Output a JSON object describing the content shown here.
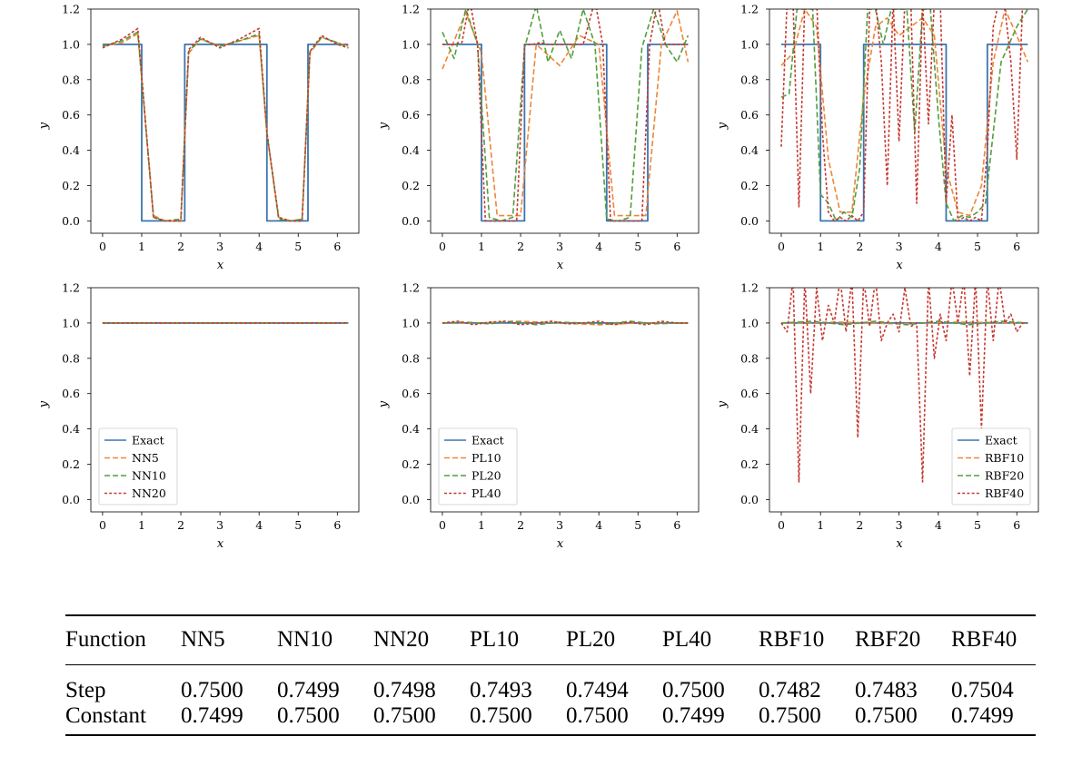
{
  "colors": {
    "exact": "#3b75af",
    "s1": "#ef8636",
    "s2": "#529e3e",
    "s3": "#c53a32",
    "axis": "#000000"
  },
  "chart_data": [
    {
      "type": "line",
      "function": "step",
      "xlabel": "x",
      "ylabel": "y",
      "xlim": [
        -0.3,
        6.55
      ],
      "ylim": [
        -0.07,
        1.2
      ],
      "xticks": [
        0,
        1,
        2,
        3,
        4,
        5,
        6
      ],
      "yticks": [
        0.0,
        0.2,
        0.4,
        0.6,
        0.8,
        1.0,
        1.2
      ],
      "legend": null,
      "series": [
        {
          "name": "Exact",
          "style": "solid",
          "color_key": "exact",
          "x": [
            0,
            1,
            1,
            2.1,
            2.1,
            4.2,
            4.2,
            5.25,
            5.25,
            6.28
          ],
          "y": [
            1,
            1,
            0,
            0,
            1,
            1,
            0,
            0,
            1,
            1
          ]
        },
        {
          "name": "NN5",
          "style": "dashed",
          "color_key": "s1",
          "x": [
            0,
            0.5,
            0.9,
            1.3,
            1.6,
            2.0,
            2.2,
            2.5,
            3.0,
            3.5,
            4.0,
            4.2,
            4.5,
            4.8,
            5.1,
            5.3,
            5.6,
            6.0,
            6.28
          ],
          "y": [
            0.99,
            1.01,
            1.06,
            0.03,
            0.0,
            0.0,
            0.95,
            1.03,
            0.99,
            1.02,
            1.05,
            0.5,
            0.02,
            0.0,
            0.01,
            0.95,
            1.04,
            1.01,
            0.99
          ]
        },
        {
          "name": "NN10",
          "style": "dashed",
          "color_key": "s2",
          "x": [
            0,
            0.5,
            0.9,
            1.3,
            1.6,
            2.0,
            2.2,
            2.5,
            3.0,
            3.5,
            4.0,
            4.2,
            4.5,
            4.8,
            5.1,
            5.3,
            5.6,
            6.0,
            6.28
          ],
          "y": [
            0.99,
            1.02,
            1.07,
            0.02,
            0.0,
            0.01,
            0.96,
            1.03,
            0.99,
            1.02,
            1.06,
            0.5,
            0.01,
            0.0,
            0.01,
            0.96,
            1.04,
            1.01,
            0.98
          ]
        },
        {
          "name": "NN20",
          "style": "dotted",
          "color_key": "s3",
          "x": [
            0,
            0.5,
            0.9,
            1.3,
            1.6,
            2.0,
            2.2,
            2.5,
            3.0,
            3.5,
            4.0,
            4.2,
            4.5,
            4.8,
            5.1,
            5.3,
            5.6,
            6.0,
            6.28
          ],
          "y": [
            0.98,
            1.03,
            1.09,
            0.02,
            0.0,
            0.0,
            0.97,
            1.04,
            0.98,
            1.03,
            1.09,
            0.5,
            0.02,
            0.0,
            0.0,
            0.96,
            1.05,
            1.0,
            0.98
          ]
        }
      ]
    },
    {
      "type": "line",
      "function": "step",
      "xlabel": "x",
      "ylabel": "y",
      "xlim": [
        -0.3,
        6.55
      ],
      "ylim": [
        -0.07,
        1.2
      ],
      "xticks": [
        0,
        1,
        2,
        3,
        4,
        5,
        6
      ],
      "yticks": [
        0.0,
        0.2,
        0.4,
        0.6,
        0.8,
        1.0,
        1.2
      ],
      "legend": null,
      "series": [
        {
          "name": "Exact",
          "style": "solid",
          "color_key": "exact",
          "x": [
            0,
            1,
            1,
            2.1,
            2.1,
            4.2,
            4.2,
            5.25,
            5.25,
            6.28
          ],
          "y": [
            1,
            1,
            0,
            0,
            1,
            1,
            0,
            0,
            1,
            1
          ]
        },
        {
          "name": "PL10",
          "style": "dashed",
          "color_key": "s1",
          "x": [
            0,
            0.6,
            1.0,
            1.4,
            2.0,
            2.4,
            3.0,
            3.5,
            4.0,
            4.4,
            5.2,
            5.6,
            6.0,
            6.28
          ],
          "y": [
            0.86,
            1.18,
            0.95,
            0.03,
            0.03,
            1.0,
            0.88,
            1.05,
            1.0,
            0.03,
            0.03,
            1.0,
            1.19,
            0.9
          ]
        },
        {
          "name": "PL20",
          "style": "dashed",
          "color_key": "s2",
          "x": [
            0,
            0.3,
            0.6,
            0.9,
            1.2,
            1.5,
            1.8,
            2.1,
            2.4,
            2.7,
            3.0,
            3.3,
            3.6,
            3.9,
            4.2,
            4.5,
            4.8,
            5.1,
            5.4,
            5.7,
            6.0,
            6.28
          ],
          "y": [
            1.07,
            0.92,
            1.2,
            1.0,
            0.02,
            0.0,
            0.02,
            0.98,
            1.22,
            0.9,
            1.08,
            0.92,
            1.2,
            1.0,
            0.01,
            0.0,
            0.02,
            0.98,
            1.2,
            1.0,
            0.9,
            1.05
          ]
        },
        {
          "name": "PL40",
          "style": "dotted",
          "color_key": "s3",
          "x": [
            0,
            0.3,
            0.5,
            0.7,
            0.9,
            1.1,
            1.3,
            1.6,
            1.9,
            2.1,
            2.3,
            2.5,
            2.7,
            3.0,
            3.3,
            3.6,
            3.9,
            4.1,
            4.3,
            4.6,
            4.9,
            5.1,
            5.3,
            5.5,
            5.7,
            6.0,
            6.28
          ],
          "y": [
            1.0,
            1.0,
            1.01,
            1.25,
            1.0,
            0.0,
            0.0,
            0.0,
            0.0,
            1.0,
            1.0,
            1.01,
            1.0,
            1.0,
            1.0,
            1.0,
            1.25,
            1.0,
            0.0,
            0.0,
            0.0,
            0.0,
            1.0,
            1.25,
            1.0,
            1.0,
            1.0
          ]
        }
      ]
    },
    {
      "type": "line",
      "function": "step",
      "xlabel": "x",
      "ylabel": "y",
      "xlim": [
        -0.3,
        6.55
      ],
      "ylim": [
        -0.07,
        1.2
      ],
      "xticks": [
        0,
        1,
        2,
        3,
        4,
        5,
        6
      ],
      "yticks": [
        0.0,
        0.2,
        0.4,
        0.6,
        0.8,
        1.0,
        1.2
      ],
      "legend": null,
      "series": [
        {
          "name": "Exact",
          "style": "solid",
          "color_key": "exact",
          "x": [
            0,
            1,
            1,
            2.1,
            2.1,
            4.2,
            4.2,
            5.25,
            5.25,
            6.28
          ],
          "y": [
            1,
            1,
            0,
            0,
            1,
            1,
            0,
            0,
            1,
            1
          ]
        },
        {
          "name": "RBF10",
          "style": "dashed",
          "color_key": "s1",
          "x": [
            0,
            0.3,
            0.6,
            0.9,
            1.2,
            1.5,
            1.8,
            2.1,
            2.4,
            2.7,
            3.0,
            3.3,
            3.6,
            3.9,
            4.2,
            4.5,
            4.8,
            5.1,
            5.4,
            5.7,
            6.0,
            6.28
          ],
          "y": [
            0.88,
            0.95,
            1.2,
            1.1,
            0.35,
            0.05,
            0.05,
            0.7,
            1.1,
            1.15,
            1.05,
            1.1,
            1.15,
            1.05,
            0.3,
            0.05,
            0.03,
            0.2,
            0.9,
            1.2,
            1.05,
            0.9
          ]
        },
        {
          "name": "RBF20",
          "style": "dashed",
          "color_key": "s2",
          "x": [
            0,
            0.2,
            0.4,
            0.6,
            0.8,
            1.0,
            1.2,
            1.4,
            1.6,
            1.8,
            2.0,
            2.2,
            2.4,
            2.6,
            2.8,
            3.0,
            3.2,
            3.4,
            3.6,
            3.8,
            4.0,
            4.2,
            4.4,
            4.6,
            4.8,
            5.0,
            5.2,
            5.4,
            5.6,
            5.8,
            6.0,
            6.28
          ],
          "y": [
            0.7,
            0.72,
            1.2,
            1.2,
            1.2,
            0.15,
            0.1,
            0.0,
            0.05,
            0.02,
            0.3,
            1.2,
            1.2,
            1.0,
            1.2,
            1.2,
            1.2,
            0.5,
            1.2,
            1.2,
            0.6,
            0.1,
            0.0,
            0.03,
            0.02,
            0.05,
            0.1,
            0.5,
            0.9,
            1.0,
            1.1,
            1.2
          ]
        },
        {
          "name": "RBF40",
          "style": "dotted",
          "color_key": "s3",
          "x": [
            0,
            0.15,
            0.3,
            0.45,
            0.6,
            0.75,
            0.9,
            1.05,
            1.2,
            1.35,
            1.5,
            1.65,
            1.8,
            1.95,
            2.1,
            2.25,
            2.4,
            2.55,
            2.7,
            2.85,
            3.0,
            3.15,
            3.3,
            3.45,
            3.6,
            3.75,
            3.9,
            4.05,
            4.2,
            4.35,
            4.5,
            4.65,
            4.8,
            4.95,
            5.1,
            5.25,
            5.4,
            5.55,
            5.7,
            5.85,
            6.0,
            6.15,
            6.28
          ],
          "y": [
            0.42,
            1.25,
            1.25,
            0.08,
            1.25,
            1.25,
            1.25,
            0.5,
            0.05,
            0.0,
            0.02,
            0.0,
            0.03,
            0.0,
            0.05,
            1.2,
            1.25,
            0.9,
            0.2,
            1.25,
            0.45,
            1.25,
            1.25,
            0.1,
            1.25,
            0.55,
            1.25,
            1.25,
            0.1,
            0.6,
            0.0,
            0.02,
            0.0,
            0.02,
            0.0,
            0.4,
            1.1,
            1.25,
            1.2,
            0.9,
            0.35,
            1.25,
            1.25
          ]
        }
      ]
    },
    {
      "type": "line",
      "function": "constant",
      "xlabel": "x",
      "ylabel": "y",
      "xlim": [
        -0.3,
        6.55
      ],
      "ylim": [
        -0.07,
        1.2
      ],
      "xticks": [
        0,
        1,
        2,
        3,
        4,
        5,
        6
      ],
      "yticks": [
        0.0,
        0.2,
        0.4,
        0.6,
        0.8,
        1.0,
        1.2
      ],
      "legend": "lower-left",
      "series": [
        {
          "name": "Exact",
          "style": "solid",
          "color_key": "exact",
          "x": [
            0,
            6.28
          ],
          "y": [
            1,
            1
          ]
        },
        {
          "name": "NN5",
          "style": "dashed",
          "color_key": "s1",
          "x": [
            0,
            6.28
          ],
          "y": [
            1,
            1
          ]
        },
        {
          "name": "NN10",
          "style": "dashed",
          "color_key": "s2",
          "x": [
            0,
            6.28
          ],
          "y": [
            1,
            1
          ]
        },
        {
          "name": "NN20",
          "style": "dotted",
          "color_key": "s3",
          "x": [
            0,
            6.28
          ],
          "y": [
            1,
            1
          ]
        }
      ]
    },
    {
      "type": "line",
      "function": "constant",
      "xlabel": "x",
      "ylabel": "y",
      "xlim": [
        -0.3,
        6.55
      ],
      "ylim": [
        -0.07,
        1.2
      ],
      "xticks": [
        0,
        1,
        2,
        3,
        4,
        5,
        6
      ],
      "yticks": [
        0.0,
        0.2,
        0.4,
        0.6,
        0.8,
        1.0,
        1.2
      ],
      "legend": "lower-left",
      "series": [
        {
          "name": "Exact",
          "style": "solid",
          "color_key": "exact",
          "x": [
            0,
            6.28
          ],
          "y": [
            1,
            1
          ]
        },
        {
          "name": "PL10",
          "style": "dashed",
          "color_key": "s1",
          "x": [
            0,
            1.0,
            2.0,
            3.0,
            4.0,
            5.0,
            6.28
          ],
          "y": [
            1.0,
            1.0,
            1.01,
            1.0,
            0.99,
            1.0,
            1.0
          ]
        },
        {
          "name": "PL20",
          "style": "dashed",
          "color_key": "s2",
          "x": [
            0,
            0.6,
            1.2,
            1.8,
            2.4,
            3.0,
            3.6,
            4.2,
            4.8,
            5.4,
            6.0,
            6.28
          ],
          "y": [
            1.0,
            1.005,
            0.995,
            1.01,
            0.99,
            1.005,
            1.0,
            0.995,
            1.01,
            0.995,
            1.0,
            1.0
          ]
        },
        {
          "name": "PL40",
          "style": "dotted",
          "color_key": "s3",
          "x": [
            0,
            0.4,
            0.8,
            1.2,
            1.6,
            2.0,
            2.4,
            2.8,
            3.2,
            3.6,
            4.0,
            4.4,
            4.8,
            5.2,
            5.6,
            6.0,
            6.28
          ],
          "y": [
            1.0,
            1.01,
            0.99,
            1.005,
            1.01,
            0.99,
            1.0,
            1.01,
            0.995,
            1.0,
            1.01,
            0.99,
            1.005,
            0.99,
            1.01,
            1.0,
            1.0
          ]
        }
      ]
    },
    {
      "type": "line",
      "function": "constant",
      "xlabel": "x",
      "ylabel": "y",
      "xlim": [
        -0.3,
        6.55
      ],
      "ylim": [
        -0.07,
        1.2
      ],
      "xticks": [
        0,
        1,
        2,
        3,
        4,
        5,
        6
      ],
      "yticks": [
        0.0,
        0.2,
        0.4,
        0.6,
        0.8,
        1.0,
        1.2
      ],
      "legend": "lower-right",
      "series": [
        {
          "name": "Exact",
          "style": "solid",
          "color_key": "exact",
          "x": [
            0,
            6.28
          ],
          "y": [
            1,
            1
          ]
        },
        {
          "name": "RBF10",
          "style": "dashed",
          "color_key": "s1",
          "x": [
            0,
            1.5,
            3.0,
            4.5,
            6.28
          ],
          "y": [
            1.0,
            1.005,
            0.995,
            1.005,
            1.0
          ]
        },
        {
          "name": "RBF20",
          "style": "dashed",
          "color_key": "s2",
          "x": [
            0,
            0.8,
            1.6,
            2.4,
            3.2,
            4.0,
            4.8,
            5.6,
            6.28
          ],
          "y": [
            1.0,
            1.01,
            0.99,
            1.01,
            0.99,
            1.01,
            0.99,
            1.01,
            1.0
          ]
        },
        {
          "name": "RBF40",
          "style": "dotted",
          "color_key": "s3",
          "x": [
            0,
            0.15,
            0.3,
            0.45,
            0.6,
            0.75,
            0.9,
            1.05,
            1.2,
            1.35,
            1.5,
            1.65,
            1.8,
            1.95,
            2.1,
            2.25,
            2.4,
            2.55,
            2.7,
            2.85,
            3.0,
            3.15,
            3.3,
            3.45,
            3.6,
            3.75,
            3.9,
            4.05,
            4.2,
            4.35,
            4.5,
            4.65,
            4.8,
            4.95,
            5.1,
            5.25,
            5.4,
            5.55,
            5.7,
            5.85,
            6.0,
            6.15,
            6.28
          ],
          "y": [
            1.0,
            0.95,
            1.25,
            0.1,
            1.25,
            0.6,
            1.2,
            0.9,
            1.1,
            1.0,
            1.25,
            0.95,
            1.25,
            0.35,
            1.25,
            0.98,
            1.25,
            0.9,
            1.0,
            1.05,
            0.95,
            1.2,
            0.98,
            1.0,
            0.1,
            1.25,
            0.8,
            1.05,
            0.9,
            1.25,
            1.0,
            1.25,
            0.7,
            1.25,
            0.4,
            1.25,
            0.9,
            1.25,
            1.0,
            1.05,
            0.95,
            1.0,
            1.0
          ]
        }
      ]
    }
  ],
  "table": {
    "headers": [
      "Function",
      "NN5",
      "NN10",
      "NN20",
      "PL10",
      "PL20",
      "PL40",
      "RBF10",
      "RBF20",
      "RBF40"
    ],
    "rows": [
      [
        "Step",
        "0.7500",
        "0.7499",
        "0.7498",
        "0.7493",
        "0.7494",
        "0.7500",
        "0.7482",
        "0.7483",
        "0.7504"
      ],
      [
        "Constant",
        "0.7499",
        "0.7500",
        "0.7500",
        "0.7500",
        "0.7500",
        "0.7499",
        "0.7500",
        "0.7500",
        "0.7499"
      ]
    ]
  }
}
